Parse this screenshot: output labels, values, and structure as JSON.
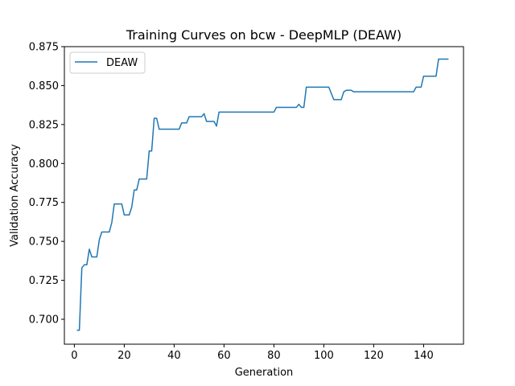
{
  "chart_data": {
    "type": "line",
    "title": "Training Curves on bcw - DeepMLP (DEAW)",
    "xlabel": "Generation",
    "ylabel": "Validation Accuracy",
    "xlim": [
      -4,
      156
    ],
    "ylim": [
      0.684,
      0.875
    ],
    "xticks": [
      0,
      20,
      40,
      60,
      80,
      100,
      120,
      140
    ],
    "yticks": [
      0.7,
      0.725,
      0.75,
      0.775,
      0.8,
      0.825,
      0.85,
      0.875
    ],
    "xtick_labels": [
      "0",
      "20",
      "40",
      "60",
      "80",
      "100",
      "120",
      "140"
    ],
    "ytick_labels": [
      "0.700",
      "0.725",
      "0.750",
      "0.775",
      "0.800",
      "0.825",
      "0.850",
      "0.875"
    ],
    "grid": false,
    "legend_position": "upper-left",
    "series": [
      {
        "name": "DEAW",
        "color": "#1f77b4",
        "x": [
          1,
          2,
          3,
          4,
          5,
          6,
          7,
          8,
          9,
          10,
          11,
          12,
          13,
          14,
          15,
          16,
          17,
          18,
          19,
          20,
          21,
          22,
          23,
          24,
          25,
          26,
          27,
          28,
          29,
          30,
          31,
          32,
          33,
          34,
          35,
          40,
          42,
          43,
          44,
          45,
          46,
          47,
          50,
          51,
          52,
          53,
          54,
          55,
          56,
          57,
          58,
          60,
          65,
          70,
          75,
          80,
          81,
          85,
          88,
          89,
          90,
          91,
          92,
          93,
          94,
          100,
          101,
          102,
          103,
          104,
          105,
          106,
          107,
          108,
          109,
          110,
          111,
          112,
          113,
          115,
          120,
          125,
          130,
          135,
          136,
          137,
          138,
          139,
          140,
          141,
          145,
          146,
          147,
          150
        ],
        "y": [
          0.693,
          0.693,
          0.733,
          0.735,
          0.735,
          0.745,
          0.74,
          0.74,
          0.74,
          0.751,
          0.756,
          0.756,
          0.756,
          0.756,
          0.762,
          0.774,
          0.774,
          0.774,
          0.774,
          0.767,
          0.767,
          0.767,
          0.772,
          0.783,
          0.783,
          0.79,
          0.79,
          0.79,
          0.79,
          0.808,
          0.808,
          0.829,
          0.829,
          0.822,
          0.822,
          0.822,
          0.822,
          0.826,
          0.826,
          0.826,
          0.83,
          0.83,
          0.83,
          0.83,
          0.832,
          0.827,
          0.827,
          0.827,
          0.827,
          0.824,
          0.833,
          0.833,
          0.833,
          0.833,
          0.833,
          0.833,
          0.836,
          0.836,
          0.836,
          0.836,
          0.838,
          0.836,
          0.836,
          0.849,
          0.849,
          0.849,
          0.849,
          0.849,
          0.845,
          0.841,
          0.841,
          0.841,
          0.841,
          0.846,
          0.847,
          0.847,
          0.847,
          0.846,
          0.846,
          0.846,
          0.846,
          0.846,
          0.846,
          0.846,
          0.846,
          0.849,
          0.849,
          0.849,
          0.856,
          0.856,
          0.856,
          0.867,
          0.867,
          0.867
        ]
      }
    ]
  }
}
